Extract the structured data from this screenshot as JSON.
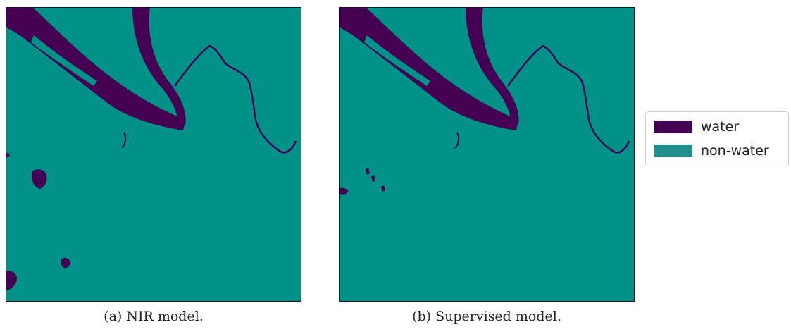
{
  "panels": [
    {
      "id": "a",
      "caption": "(a) NIR model."
    },
    {
      "id": "b",
      "caption": "(b) Supervised model."
    }
  ],
  "legend": {
    "items": [
      {
        "label": "water",
        "color": "#440154"
      },
      {
        "label": "non-water",
        "color": "#21908d"
      }
    ]
  },
  "colors": {
    "water": "#440154",
    "non_water": "#009188",
    "frame": "#111111"
  }
}
